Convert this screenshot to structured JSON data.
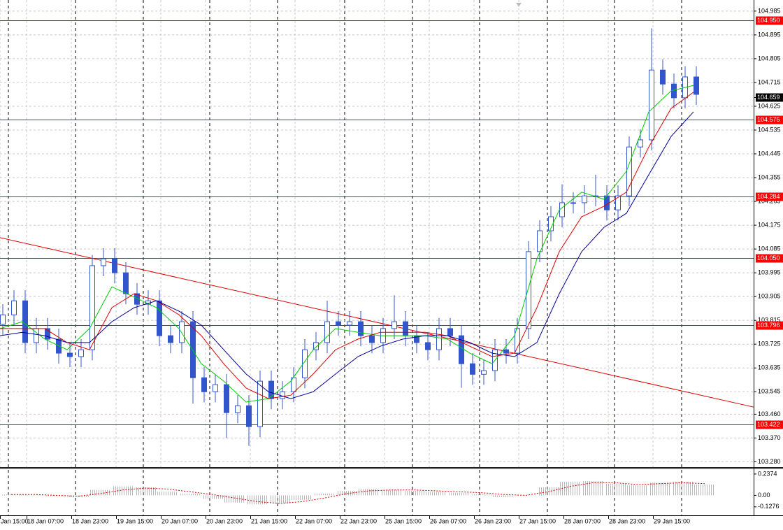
{
  "chart_data": [
    {
      "type": "candlestick",
      "color": "#3355cc",
      "x": [
        0,
        4,
        8,
        12,
        16,
        20,
        24,
        28,
        32,
        36,
        40,
        44,
        48,
        52,
        56,
        60,
        64,
        68,
        72,
        76,
        80,
        84,
        88,
        92,
        96,
        100,
        104,
        108,
        112,
        116,
        120,
        124,
        128,
        132,
        136,
        140,
        144,
        148,
        152,
        156,
        160,
        164,
        168,
        172,
        176,
        180,
        184,
        188,
        192,
        196,
        200,
        204,
        208,
        212,
        216,
        220,
        224,
        228,
        232,
        236,
        240,
        244,
        248
      ],
      "open": [
        103.8,
        103.836,
        103.889,
        103.731,
        103.784,
        103.744,
        103.691,
        103.678,
        103.704,
        104.022,
        104.048,
        103.995,
        103.916,
        103.876,
        103.889,
        103.757,
        103.731,
        103.81,
        103.598,
        103.545,
        103.572,
        103.466,
        103.492,
        103.413,
        103.585,
        103.519,
        103.545,
        103.598,
        103.704,
        103.731,
        103.81,
        103.797,
        103.81,
        103.757,
        103.731,
        103.784,
        103.81,
        103.757,
        103.731,
        103.704,
        103.784,
        103.757,
        103.651,
        103.611,
        103.625,
        103.704,
        103.691,
        103.784,
        104.075,
        104.154,
        104.207,
        104.26,
        104.26,
        104.286,
        104.286,
        104.233,
        104.286,
        104.471,
        104.498,
        104.762,
        104.709,
        104.657,
        104.736
      ],
      "high": [
        103.876,
        103.929,
        103.929,
        103.824,
        103.824,
        103.784,
        103.731,
        103.744,
        104.062,
        104.088,
        104.088,
        104.035,
        103.956,
        103.929,
        103.929,
        103.797,
        103.85,
        103.85,
        103.638,
        103.612,
        103.612,
        103.532,
        103.532,
        103.625,
        103.625,
        103.585,
        103.638,
        103.744,
        103.771,
        103.89,
        103.85,
        103.85,
        103.85,
        103.797,
        103.824,
        103.91,
        103.85,
        103.797,
        103.771,
        103.824,
        103.824,
        103.797,
        103.691,
        103.665,
        103.744,
        103.744,
        103.824,
        104.115,
        104.194,
        104.247,
        104.33,
        104.3,
        104.326,
        104.366,
        104.326,
        104.326,
        104.511,
        104.538,
        104.92,
        104.802,
        104.749,
        104.776,
        104.776
      ],
      "low": [
        103.76,
        103.796,
        103.691,
        103.691,
        103.704,
        103.651,
        103.638,
        103.638,
        103.664,
        103.982,
        103.955,
        103.876,
        103.836,
        103.836,
        103.717,
        103.691,
        103.691,
        103.5,
        103.505,
        103.505,
        103.37,
        103.426,
        103.34,
        103.373,
        103.479,
        103.479,
        103.505,
        103.558,
        103.664,
        103.691,
        103.757,
        103.757,
        103.717,
        103.691,
        103.691,
        103.744,
        103.717,
        103.691,
        103.664,
        103.664,
        103.717,
        103.56,
        103.571,
        103.571,
        103.585,
        103.651,
        103.651,
        103.744,
        104.035,
        104.114,
        104.167,
        104.22,
        104.22,
        104.246,
        104.193,
        104.193,
        104.246,
        104.431,
        104.458,
        104.669,
        104.617,
        104.617,
        104.63
      ],
      "close": [
        103.836,
        103.889,
        103.731,
        103.784,
        103.744,
        103.691,
        103.678,
        103.704,
        104.022,
        104.048,
        103.995,
        103.916,
        103.876,
        103.889,
        103.757,
        103.731,
        103.81,
        103.598,
        103.545,
        103.572,
        103.466,
        103.492,
        103.413,
        103.585,
        103.519,
        103.545,
        103.598,
        103.704,
        103.731,
        103.81,
        103.797,
        103.81,
        103.757,
        103.731,
        103.784,
        103.81,
        103.757,
        103.731,
        103.704,
        103.784,
        103.757,
        103.651,
        103.611,
        103.625,
        103.704,
        103.691,
        103.784,
        104.075,
        104.154,
        104.207,
        104.26,
        104.26,
        104.286,
        104.286,
        104.233,
        104.286,
        104.471,
        104.498,
        104.762,
        104.709,
        104.657,
        104.736,
        104.67
      ],
      "ma_x": [
        0,
        8,
        16,
        24,
        32,
        40,
        48,
        56,
        64,
        72,
        80,
        88,
        96,
        104,
        112,
        120,
        128,
        136,
        144,
        152,
        160,
        168,
        176,
        184,
        192,
        200,
        208,
        216,
        224,
        232,
        240,
        248
      ],
      "lines": [
        {
          "color": "#00cc00",
          "values": [
            103.784,
            103.81,
            103.744,
            103.704,
            103.784,
            103.942,
            103.903,
            103.863,
            103.784,
            103.651,
            103.585,
            103.506,
            103.519,
            103.585,
            103.704,
            103.784,
            103.77,
            103.757,
            103.757,
            103.757,
            103.744,
            103.691,
            103.651,
            103.757,
            104.048,
            104.233,
            104.3,
            104.273,
            104.379,
            104.604,
            104.683,
            104.704
          ]
        },
        {
          "color": "#dd0000",
          "values": [
            103.784,
            103.784,
            103.784,
            103.731,
            103.704,
            103.863,
            103.916,
            103.889,
            103.836,
            103.757,
            103.651,
            103.559,
            103.519,
            103.532,
            103.612,
            103.704,
            103.744,
            103.77,
            103.77,
            103.77,
            103.757,
            103.717,
            103.678,
            103.691,
            103.863,
            104.075,
            104.207,
            104.247,
            104.3,
            104.471,
            104.617,
            104.678
          ]
        },
        {
          "color": "#000099",
          "values": [
            103.757,
            103.77,
            103.757,
            103.731,
            103.731,
            103.81,
            103.863,
            103.889,
            103.85,
            103.797,
            103.704,
            103.612,
            103.545,
            103.519,
            103.545,
            103.612,
            103.678,
            103.717,
            103.744,
            103.757,
            103.757,
            103.731,
            103.691,
            103.678,
            103.731,
            103.916,
            104.075,
            104.167,
            104.22,
            104.366,
            104.511,
            104.604
          ]
        }
      ],
      "trendline": {
        "color": "#dd0000",
        "x": [
          0,
          269.5
        ],
        "y": [
          104.128,
          103.487
        ]
      },
      "levels": [
        {
          "value": 104.95,
          "label": "104.950"
        },
        104.575,
        104.284,
        {
          "value": 104.05,
          "label": "104.050"
        },
        103.796,
        103.422
      ],
      "level_color": "#ff0000",
      "current_price": 104.659,
      "xlim": [
        0,
        269.5
      ],
      "ylim": [
        103.26,
        105.027
      ],
      "yticks": [
        104.985,
        104.895,
        104.805,
        104.715,
        104.625,
        104.535,
        104.445,
        104.355,
        104.265,
        104.175,
        104.085,
        103.995,
        103.905,
        103.815,
        103.725,
        103.635,
        103.545,
        {
          "value": 103.46,
          "label": "103.460"
        },
        {
          "value": 103.37,
          "label": "103.370"
        },
        {
          "value": 103.28,
          "label": "103.280"
        }
      ],
      "xticks": [
        {
          "value": 0,
          "label": "Jan 15:00"
        },
        {
          "value": 9.5,
          "label": "18 Jan 07:00"
        },
        {
          "value": 25.5,
          "label": "18 Jan 23:00"
        },
        {
          "value": 41.5,
          "label": "19 Jan 15:00"
        },
        {
          "value": 57.5,
          "label": "20 Jan 07:00"
        },
        {
          "value": 73.5,
          "label": "20 Jan 23:00"
        },
        {
          "value": 89.5,
          "label": "21 Jan 15:00"
        },
        {
          "value": 105.5,
          "label": "22 Jan 07:00"
        },
        {
          "value": 121.5,
          "label": "22 Jan 23:00"
        },
        {
          "value": 137.5,
          "label": "25 Jan 15:00"
        },
        {
          "value": 153.5,
          "label": "26 Jan 07:00"
        },
        {
          "value": 169.5,
          "label": "26 Jan 23:00"
        },
        {
          "value": 185.5,
          "label": "27 Jan 15:00"
        },
        {
          "value": 201.5,
          "label": "28 Jan 07:00"
        },
        {
          "value": 217.5,
          "label": "28 Jan 23:00"
        },
        {
          "value": 233.5,
          "label": "29 Jan 15:00"
        }
      ],
      "grid": true
    },
    {
      "type": "bar",
      "color": "#c4c4c4",
      "x": [
        0,
        8,
        16,
        24,
        32,
        40,
        48,
        56,
        64,
        72,
        80,
        88,
        96,
        104,
        112,
        120,
        128,
        136,
        144,
        152,
        160,
        168,
        176,
        184,
        192,
        200,
        208,
        216,
        224,
        232,
        240,
        248
      ],
      "values": [
        0.01,
        0.0,
        -0.01,
        -0.02,
        0.06,
        0.1,
        0.09,
        0.04,
        0.02,
        -0.04,
        -0.08,
        -0.1,
        -0.09,
        -0.05,
        0.02,
        0.05,
        0.07,
        0.06,
        0.05,
        0.04,
        0.03,
        0.01,
        -0.02,
        0.0,
        0.09,
        0.15,
        0.16,
        0.13,
        0.11,
        0.14,
        0.15,
        0.12
      ],
      "signal": {
        "color": "#dd0000",
        "values": [
          0.01,
          0.01,
          0.0,
          -0.01,
          0.02,
          0.06,
          0.08,
          0.07,
          0.04,
          0.01,
          -0.03,
          -0.07,
          -0.09,
          -0.07,
          -0.03,
          0.02,
          0.05,
          0.06,
          0.06,
          0.05,
          0.04,
          0.03,
          0.01,
          0.0,
          0.04,
          0.1,
          0.14,
          0.14,
          0.12,
          0.13,
          0.14,
          0.13
        ]
      },
      "xlim": [
        0,
        269.5
      ],
      "ylim": [
        -0.222,
        0.291
      ],
      "yticks": [
        0.2374,
        {
          "value": 0,
          "label": "0.00"
        },
        -0.1276
      ]
    }
  ]
}
